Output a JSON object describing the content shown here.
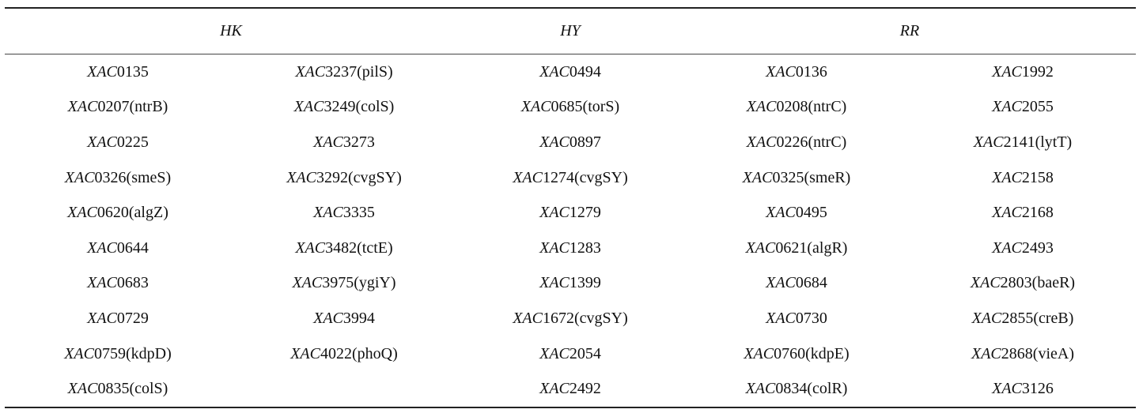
{
  "table": {
    "header": [
      "HK",
      "HY",
      "RR"
    ],
    "rows": [
      [
        "XAC0135",
        "XAC3237(pilS)",
        "XAC0494",
        "XAC0136",
        "XAC1992"
      ],
      [
        "XAC0207(ntrB)",
        "XAC3249(colS)",
        "XAC0685(torS)",
        "XAC0208(ntrC)",
        "XAC2055"
      ],
      [
        "XAC0225",
        "XAC3273",
        "XAC0897",
        "XAC0226(ntrC)",
        "XAC2141(lytT)"
      ],
      [
        "XAC0326(smeS)",
        "XAC3292(cvgSY)",
        "XAC1274(cvgSY)",
        "XAC0325(smeR)",
        "XAC2158"
      ],
      [
        "XAC0620(algZ)",
        "XAC3335",
        "XAC1279",
        "XAC0495",
        "XAC2168"
      ],
      [
        "XAC0644",
        "XAC3482(tctE)",
        "XAC1283",
        "XAC0621(algR)",
        "XAC2493"
      ],
      [
        "XAC0683",
        "XAC3975(ygiY)",
        "XAC1399",
        "XAC0684",
        "XAC2803(baeR)"
      ],
      [
        "XAC0729",
        "XAC3994",
        "XAC1672(cvgSY)",
        "XAC0730",
        "XAC2855(creB)"
      ],
      [
        "XAC0759(kdpD)",
        "XAC4022(phoQ)",
        "XAC2054",
        "XAC0760(kdpE)",
        "XAC2868(vieA)"
      ],
      [
        "XAC0835(colS)",
        null,
        "XAC2492",
        "XAC0834(colR)",
        "XAC3126"
      ]
    ]
  }
}
